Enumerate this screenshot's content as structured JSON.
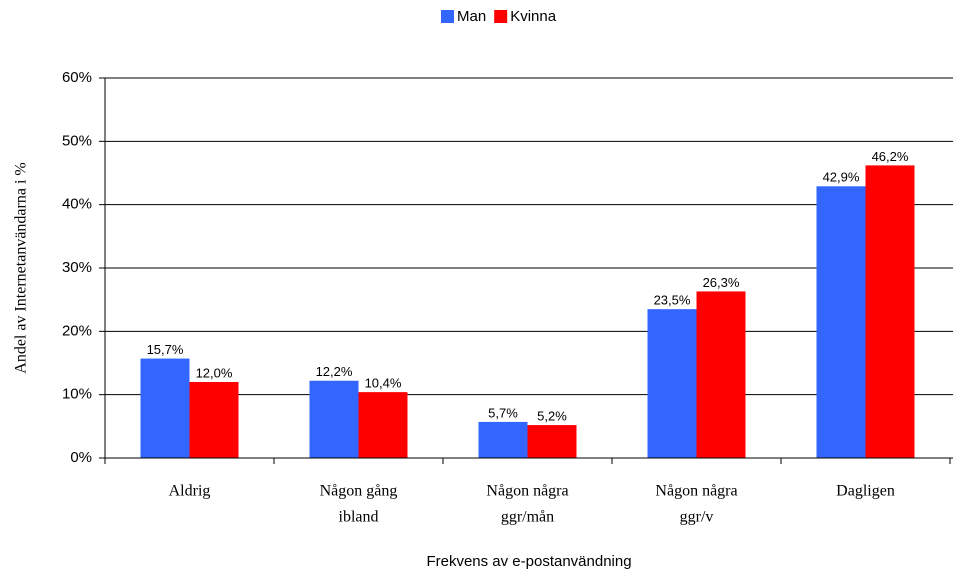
{
  "chart_data": {
    "type": "bar",
    "categories": [
      [
        "Aldrig"
      ],
      [
        "Någon gång",
        "ibland"
      ],
      [
        "Någon några",
        "ggr/mån"
      ],
      [
        "Någon några",
        "ggr/v"
      ],
      [
        "Dagligen"
      ]
    ],
    "series": [
      {
        "name": "Man",
        "color": "#3366ff",
        "values": [
          15.7,
          12.2,
          5.7,
          23.5,
          42.9
        ],
        "value_labels": [
          "15,7%",
          "12,2%",
          "5,7%",
          "23,5%",
          "42,9%"
        ]
      },
      {
        "name": "Kvinna",
        "color": "#ff0000",
        "values": [
          12.0,
          10.4,
          5.2,
          26.3,
          46.2
        ],
        "value_labels": [
          "12,0%",
          "10,4%",
          "5,2%",
          "26,3%",
          "46,2%"
        ]
      }
    ],
    "xlabel": "Frekvens av e-postanvändning",
    "ylabel": "Andel av Internetanvändarna i %",
    "ylim": [
      0,
      60
    ],
    "yticks": [
      {
        "value": 0,
        "label": "0%"
      },
      {
        "value": 10,
        "label": "10%"
      },
      {
        "value": 20,
        "label": "20%"
      },
      {
        "value": 30,
        "label": "30%"
      },
      {
        "value": 40,
        "label": "40%"
      },
      {
        "value": 50,
        "label": "50%"
      },
      {
        "value": 60,
        "label": "60%"
      }
    ],
    "grid": true,
    "legend": "top"
  }
}
